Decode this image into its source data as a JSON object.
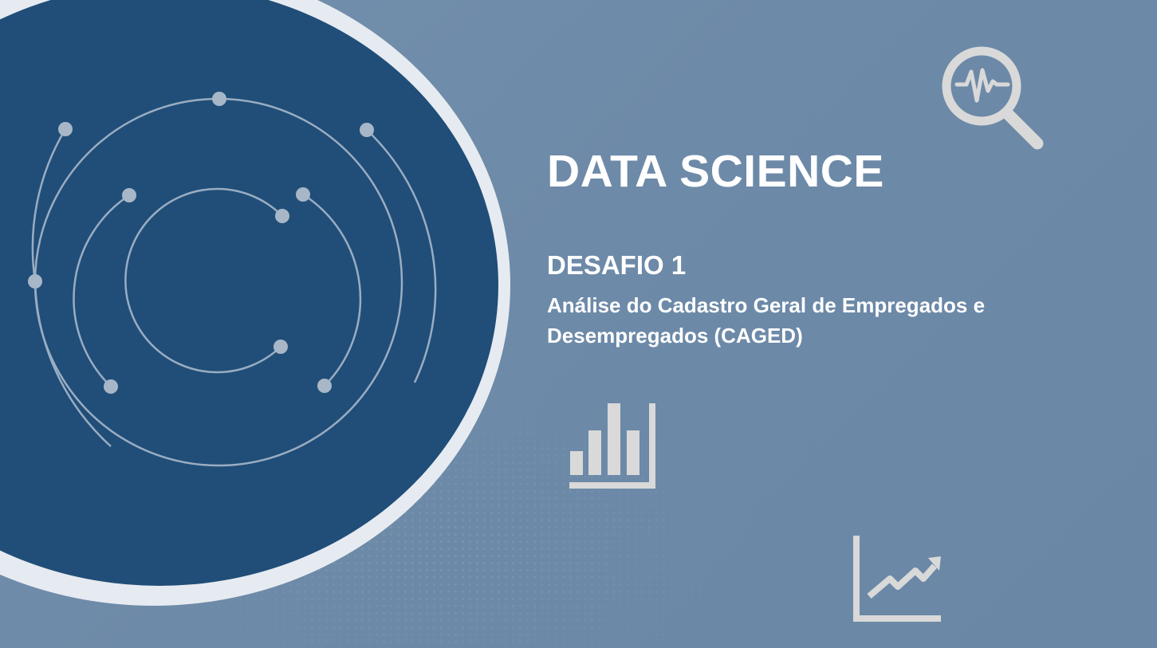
{
  "slide": {
    "title": "DATA SCIENCE",
    "subtitle": "DESAFIO 1",
    "description": "Análise do Cadastro Geral de Empregados e Desempregados (CAGED)"
  },
  "icons": {
    "magnifier": "magnifier-pulse-icon",
    "bar_chart": "bar-chart-icon",
    "trend_chart": "trend-line-chart-icon"
  },
  "colors": {
    "background": "#6d8aa8",
    "circle": "#204e78",
    "ring": "#e6ebf1",
    "icon": "#d9d9d9",
    "text": "#ffffff"
  }
}
